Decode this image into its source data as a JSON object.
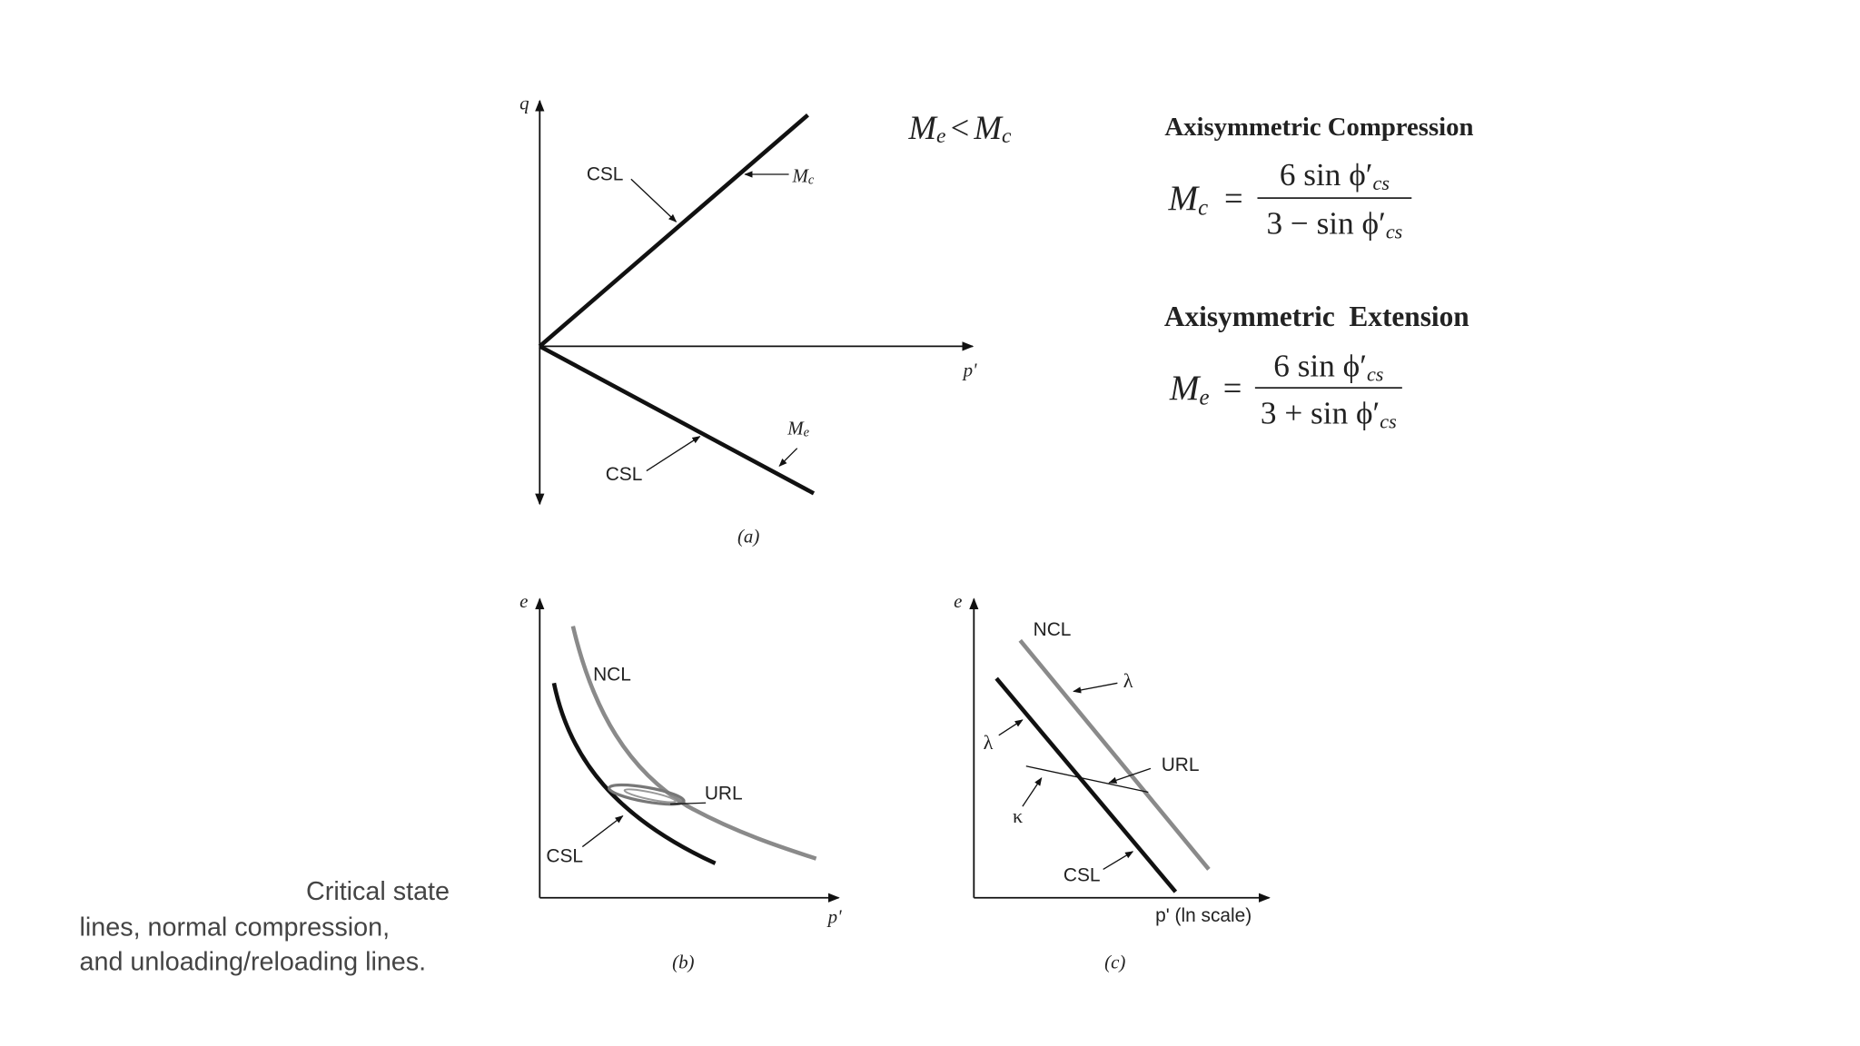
{
  "panel_a": {
    "q_axis": "q",
    "p_axis": "p'",
    "csl_upper": "CSL",
    "mc_label": {
      "main": "M",
      "sub": "c"
    },
    "csl_lower": "CSL",
    "me_label": {
      "main": "M",
      "sub": "e"
    },
    "caption": "(a)"
  },
  "relation": {
    "left": "M",
    "left_sub": "e",
    "op": "<",
    "right": "M",
    "right_sub": "c"
  },
  "compression": {
    "heading": "Axisymmetric Compression",
    "lhs": "M",
    "lhs_sub": "c",
    "equals": "=",
    "numerator": "6 sin ϕ′",
    "numerator_sub": "cs",
    "denominator": "3 − sin ϕ′",
    "denominator_sub": "cs"
  },
  "extension": {
    "heading": "Axisymmetric  Extension",
    "lhs": "M",
    "lhs_sub": "e",
    "equals": "=",
    "numerator": "6 sin ϕ′",
    "numerator_sub": "cs",
    "denominator": "3 + sin ϕ′",
    "denominator_sub": "cs"
  },
  "panel_b": {
    "e_axis": "e",
    "p_axis": "p'",
    "ncl": "NCL",
    "url": "URL",
    "csl": "CSL",
    "caption": "(b)"
  },
  "panel_c": {
    "e_axis": "e",
    "p_axis": "p' (ln scale)",
    "ncl": "NCL",
    "lambda_upper": "λ",
    "lambda_lower": "λ",
    "url": "URL",
    "kappa": "κ",
    "csl": "CSL",
    "caption": "(c)"
  },
  "slide_caption": {
    "lines": [
      "Critical state",
      "lines, normal compression,",
      "and unloading/reloading lines."
    ]
  }
}
